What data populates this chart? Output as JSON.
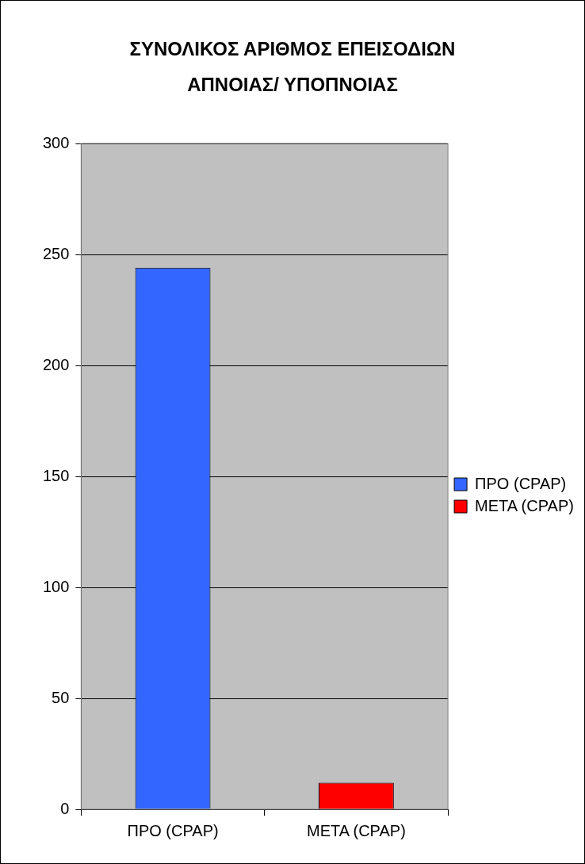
{
  "chart_data": {
    "type": "bar",
    "title": "ΣΥΝΟΛΙΚΟΣ ΑΡΙΘΜΟΣ ΕΠΕΙΣΟΔΙΩΝ ΑΠΝΟΙΑΣ/ ΥΠΟΠΝΟΙΑΣ",
    "categories": [
      "ΠΡΟ (CPAP)",
      "ΜΕΤΑ (CPAP)"
    ],
    "series": [
      {
        "name": "ΠΡΟ (CPAP)",
        "color": "#3366ff",
        "values": [
          244,
          null
        ]
      },
      {
        "name": "ΜΕΤΑ (CPAP)",
        "color": "#ff0000",
        "values": [
          null,
          12
        ]
      }
    ],
    "ylim": [
      0,
      300
    ],
    "yticks": [
      0,
      50,
      100,
      150,
      200,
      250,
      300
    ],
    "grid": "y",
    "legend": "right"
  }
}
